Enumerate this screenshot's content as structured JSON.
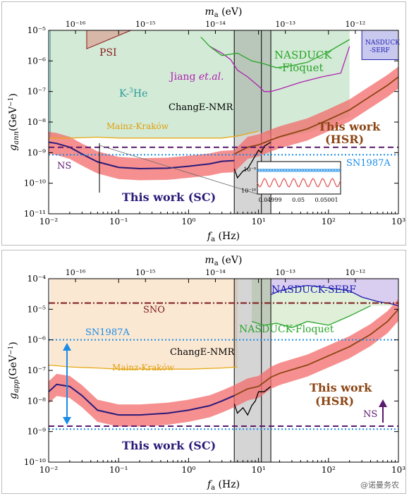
{
  "chart_data": [
    {
      "type": "line",
      "panel": "top",
      "xlabel": "f_a (Hz)",
      "xlabel_main": "f",
      "xlabel_sub": "a",
      "xlabel_unit": "(Hz)",
      "ylabel_main": "g",
      "ylabel_sub": "ann",
      "ylabel_unit": "(GeV",
      "ylabel_unit_sup": "−1",
      "ylabel_close": ")",
      "top_axis_label_main": "m",
      "top_axis_label_sub": "a",
      "top_axis_label_unit": "(eV)",
      "x_scale": "log",
      "y_scale": "log",
      "xlim": [
        0.01,
        1000
      ],
      "ylim": [
        1e-11,
        1e-05
      ],
      "x_ticks": [
        "10",
        "10",
        "10",
        "10",
        "10",
        "10"
      ],
      "x_tick_exps": [
        "-2",
        "-1",
        "0",
        "1",
        "2",
        "3"
      ],
      "x_tick_values": [
        0.01,
        0.1,
        1,
        10,
        100,
        1000
      ],
      "x_tick_texts": [
        "10⁻²",
        "10⁻¹",
        "10⁰",
        "10¹",
        "10²",
        "10³"
      ],
      "y_tick_texts": [
        "10⁻¹¹",
        "10⁻¹⁰",
        "10⁻⁹",
        "10⁻⁸",
        "10⁻⁷",
        "10⁻⁶",
        "10⁻⁵"
      ],
      "y_tick_values": [
        1e-11,
        1e-10,
        1e-09,
        1e-08,
        1e-07,
        1e-06,
        1e-05
      ],
      "top_tick_texts": [
        "10⁻¹⁶",
        "10⁻¹⁵",
        "10⁻¹⁴",
        "10⁻¹³",
        "10⁻¹²"
      ],
      "top_tick_freqs": [
        0.0242,
        0.242,
        2.42,
        24.2,
        242
      ],
      "legend": "none",
      "grid": false,
      "series": [
        {
          "name": "This work (SC)",
          "color": "#2a1a7a",
          "x": [
            0.01,
            0.013,
            0.02,
            0.03,
            0.05,
            0.1,
            0.2,
            0.5,
            1,
            2,
            3,
            4.5
          ],
          "y": [
            2.2e-09,
            2e-09,
            1.5e-09,
            9e-10,
            5e-10,
            3.3e-10,
            3e-10,
            3.1e-10,
            3.6e-10,
            4.3e-10,
            5.2e-10,
            5.5e-10
          ]
        },
        {
          "name": "This work (HSR)",
          "color": "#8b4513",
          "x": [
            4.5,
            7,
            10,
            15,
            20,
            50,
            100,
            200,
            400,
            700,
            1000
          ],
          "y": [
            9e-10,
            1.5e-09,
            1.8e-09,
            2.6e-09,
            3.3e-09,
            6e-09,
            1.2e-08,
            2.5e-08,
            7e-08,
            1.6e-07,
            3e-07
          ]
        },
        {
          "name": "Mainz-Kraków",
          "color": "#e6a817",
          "x": [
            0.01,
            0.02,
            0.05,
            0.1,
            0.3,
            1,
            3,
            5,
            10
          ],
          "y": [
            3e-09,
            3e-09,
            3.2e-09,
            3e-09,
            3e-09,
            3e-09,
            3e-09,
            3.5e-09,
            5e-09
          ]
        },
        {
          "name": "ChangE-NMR",
          "color": "#000000",
          "x": [
            4.5,
            5,
            6,
            7,
            8,
            9,
            10,
            11,
            12,
            13,
            15
          ],
          "y": [
            3e-10,
            1.5e-10,
            2.5e-10,
            3e-10,
            5e-10,
            8e-10,
            1.2e-09,
            1e-09,
            1.6e-09,
            1.8e-09,
            2.2e-09
          ]
        },
        {
          "name": "Jiang et.al.",
          "color": "#b022b0",
          "x": [
            2,
            3,
            4,
            5,
            7,
            10,
            12,
            15,
            20,
            40,
            80,
            150,
            200
          ],
          "y": [
            3e-06,
            1.8e-06,
            1.1e-06,
            5e-07,
            3e-07,
            1.5e-07,
            1e-07,
            1e-07,
            1.2e-07,
            2e-07,
            3e-07,
            4e-07,
            3e-06
          ]
        },
        {
          "name": "NASDUCK-Floquet",
          "color": "#2aa52a",
          "x": [
            1.5,
            2,
            3,
            5,
            8,
            12,
            18,
            30,
            50,
            100,
            200
          ],
          "y": [
            6e-06,
            3e-06,
            1.5e-06,
            1.8e-06,
            1e-06,
            8e-07,
            6e-07,
            7e-07,
            9e-07,
            2e-06,
            5e-06
          ]
        }
      ],
      "hlines": [
        {
          "name": "SN1987A",
          "y": 8.5e-10,
          "color": "#1a8ce6",
          "style": "dotted"
        },
        {
          "name": "NS",
          "y": 1.5e-09,
          "color": "#5a1a6e",
          "style": "dashed"
        }
      ],
      "annotations": {
        "psi": "PSI",
        "k3he_main": "K-",
        "k3he_sup": "3",
        "k3he_tail": "He",
        "jiang_main": "Jiang ",
        "jiang_italic": "et.al.",
        "nasduck_floquet_l1": "NASDUCK",
        "nasduck_floquet_l2": "-Floquet",
        "nasduck_serf_l1": "NASDUCK",
        "nasduck_serf_l2": "-SERF",
        "change": "ChangE-NMR",
        "mainz": "Mainz-Kraków",
        "this_work_hsr_l1": "This work",
        "this_work_hsr_l2": "(HSR)",
        "this_work_sc": "This work (SC)",
        "ns": "NS",
        "sn1987a": "SN1987A"
      },
      "inset": {
        "y_tick_texts": [
          "10⁻⁹",
          "10⁻¹⁰"
        ],
        "x_tick_texts": [
          "0.04999",
          "0.05",
          "0.05001"
        ]
      }
    },
    {
      "type": "line",
      "panel": "bottom",
      "xlabel": "f_a (Hz)",
      "xlabel_main": "f",
      "xlabel_sub": "a",
      "xlabel_unit": "(Hz)",
      "ylabel_main": "g",
      "ylabel_sub": "app",
      "ylabel_unit": "(GeV",
      "ylabel_unit_sup": "−1",
      "ylabel_close": ")",
      "top_axis_label_main": "m",
      "top_axis_label_sub": "a",
      "top_axis_label_unit": "(eV)",
      "x_scale": "log",
      "y_scale": "log",
      "xlim": [
        0.01,
        1000
      ],
      "ylim": [
        1e-10,
        0.0001
      ],
      "x_tick_values": [
        0.01,
        0.1,
        1,
        10,
        100,
        1000
      ],
      "x_tick_texts": [
        "10⁻²",
        "10⁻¹",
        "10⁰",
        "10¹",
        "10²",
        "10³"
      ],
      "y_tick_texts": [
        "10⁻¹⁰",
        "10⁻⁹",
        "10⁻⁸",
        "10⁻⁷",
        "10⁻⁶",
        "10⁻⁵",
        "10⁻⁴"
      ],
      "y_tick_values": [
        1e-10,
        1e-09,
        1e-08,
        1e-07,
        1e-06,
        1e-05,
        0.0001
      ],
      "top_tick_texts": [
        "10⁻¹⁶",
        "10⁻¹⁵",
        "10⁻¹⁴",
        "10⁻¹³",
        "10⁻¹²"
      ],
      "top_tick_freqs": [
        0.0242,
        0.242,
        2.42,
        24.2,
        242
      ],
      "legend": "none",
      "grid": false,
      "series": [
        {
          "name": "This work (SC)",
          "color": "#2a1a7a",
          "x": [
            0.01,
            0.013,
            0.02,
            0.03,
            0.05,
            0.1,
            0.2,
            0.5,
            1,
            2,
            3,
            4.5
          ],
          "y": [
            2e-08,
            3.5e-08,
            3e-08,
            1.5e-08,
            5e-09,
            3.5e-09,
            3.5e-09,
            4e-09,
            5e-09,
            7e-09,
            1e-08,
            1.5e-08
          ]
        },
        {
          "name": "This work (HSR)",
          "color": "#8b4513",
          "x": [
            4.5,
            7,
            10,
            15,
            20,
            50,
            100,
            200,
            400,
            700,
            1000
          ],
          "y": [
            1.5e-08,
            2.5e-08,
            3e-08,
            6e-08,
            8e-08,
            1.5e-07,
            3e-07,
            6e-07,
            1.5e-06,
            4e-06,
            1e-05
          ]
        },
        {
          "name": "Mainz-Kraków",
          "color": "#e6a817",
          "x": [
            0.01,
            0.02,
            0.05,
            0.1,
            0.3,
            1,
            3,
            5
          ],
          "y": [
            1.5e-07,
            1.3e-07,
            1.2e-07,
            1.1e-07,
            1.1e-07,
            1.1e-07,
            1.2e-07,
            1.3e-07
          ]
        },
        {
          "name": "ChangE-NMR",
          "color": "#000000",
          "x": [
            4.5,
            5,
            6,
            7,
            8,
            9,
            10,
            12,
            15
          ],
          "y": [
            8e-09,
            4e-09,
            6e-09,
            3.5e-09,
            7e-09,
            1e-08,
            2e-08,
            2e-08,
            3e-08
          ]
        },
        {
          "name": "NASDUCK-Floquet",
          "color": "#2aa52a",
          "x": [
            8,
            12,
            18,
            30,
            50,
            100,
            200,
            400
          ],
          "y": [
            4e-06,
            3e-06,
            3.5e-06,
            2.5e-06,
            4e-06,
            3e-06,
            6e-06,
            1.3e-05
          ]
        },
        {
          "name": "NASDUCK-SERF",
          "color": "#1a1ab0",
          "x": [
            15,
            20,
            30,
            50,
            100,
            200,
            300,
            500,
            800,
            1000
          ],
          "y": [
            3e-05,
            4e-05,
            5e-05,
            6e-05,
            5e-05,
            4e-05,
            2.5e-05,
            1.8e-05,
            1.5e-05,
            1.3e-05
          ]
        }
      ],
      "hlines": [
        {
          "name": "SNO",
          "y": 1.6e-05,
          "color": "#7a1a1a",
          "style": "dashdot"
        },
        {
          "name": "SN1987A",
          "y": 1e-06,
          "color": "#1a8ce6",
          "style": "dotted"
        },
        {
          "name": "NS",
          "y": 1.5e-09,
          "color": "#5a1a6e",
          "style": "dashed"
        },
        {
          "name": "SN1987A-lower",
          "y": 1.2e-09,
          "color": "#1a8ce6",
          "style": "dotted"
        }
      ],
      "annotations": {
        "sno": "SNO",
        "sn1987a": "SN1987A",
        "nasduck_serf": "NASDUCK-SERF",
        "nasduck_floquet": "NASDUCK-Floquet",
        "change": "ChangE-NMR",
        "mainz": "Mainz-Kraków",
        "this_work_hsr_l1": "This work",
        "this_work_hsr_l2": "(HSR)",
        "this_work_sc": "This work (SC)",
        "ns": "NS"
      }
    }
  ],
  "watermark": "@诺曼务农"
}
